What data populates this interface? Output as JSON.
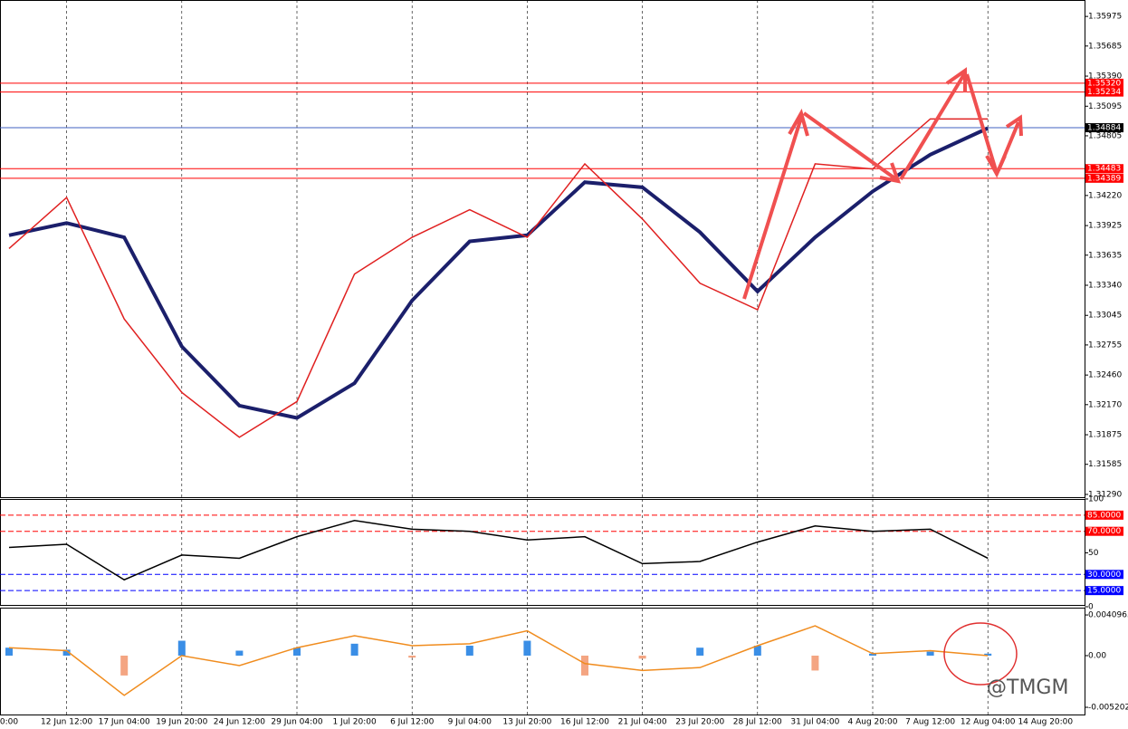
{
  "chart_data": [
    {
      "type": "line",
      "categories": [
        "0:00",
        "12 Jun 12:00",
        "17 Jun 04:00",
        "19 Jun 20:00",
        "24 Jun 12:00",
        "29 Jun 04:00",
        "1 Jul 20:00",
        "6 Jul 12:00",
        "9 Jul 04:00",
        "13 Jul 20:00",
        "16 Jul 12:00",
        "21 Jul 04:00",
        "23 Jul 20:00",
        "28 Jul 12:00",
        "31 Jul 04:00",
        "4 Aug 20:00",
        "7 Aug 12:00",
        "12 Aug 04:00",
        "14 Aug 20:00"
      ],
      "series": [
        {
          "color": "#1b1f6b",
          "values": [
            1.3383,
            1.3395,
            1.3381,
            1.3274,
            1.3216,
            1.3204,
            1.3238,
            1.3319,
            1.3377,
            1.3383,
            1.3435,
            1.343,
            1.3386,
            1.3328,
            1.3381,
            1.3426,
            1.3462,
            1.3488,
            null
          ]
        },
        {
          "color": "#e02020",
          "values": [
            1.337,
            1.342,
            1.3301,
            1.3229,
            1.3185,
            1.322,
            1.3345,
            1.3381,
            1.3408,
            1.3381,
            1.3453,
            1.3399,
            1.3336,
            1.331,
            1.3453,
            1.3448,
            1.3497,
            1.3497,
            null
          ]
        }
      ],
      "ylim": [
        1.31263,
        1.36136
      ],
      "yticks": [
        {
          "value": 1.35975,
          "label": "1.35975"
        },
        {
          "value": 1.35685,
          "label": "1.35685"
        },
        {
          "value": 1.3539,
          "label": "1.35390"
        },
        1.35095,
        {
          "value": 1.34805,
          "label": "1.34805"
        },
        {
          "value": 1.3422,
          "label": "1.34220"
        },
        1.33925,
        1.33635,
        {
          "value": 1.3334,
          "label": "1.33340"
        },
        1.33045,
        1.32755,
        {
          "value": 1.3246,
          "label": "1.32460"
        },
        {
          "value": 1.3217,
          "label": "1.32170"
        },
        1.31875,
        1.31585,
        {
          "value": 1.3129,
          "label": "1.31290"
        }
      ],
      "levels": [
        {
          "value": 1.3532,
          "label": "1.35320",
          "color": "#ff0000"
        },
        {
          "value": 1.35234,
          "label": "1.35234",
          "color": "#ff0000"
        },
        {
          "value": 1.34884,
          "label": "1.34884",
          "color": "#000000"
        },
        {
          "value": 1.34483,
          "label": "1.34483",
          "color": "#ff0000"
        },
        {
          "value": 1.34389,
          "label": "1.34389",
          "color": "#ff0000"
        }
      ],
      "grid": true
    },
    {
      "type": "line",
      "series": [
        {
          "color": "#000000",
          "values": [
            55,
            58,
            25,
            48,
            45,
            65,
            80,
            72,
            70,
            62,
            65,
            40,
            42,
            60,
            75,
            70,
            72,
            45,
            null
          ]
        }
      ],
      "ylim": [
        0,
        100
      ],
      "yticks": [
        100,
        50,
        0
      ],
      "levels": [
        {
          "value": 85,
          "label": "85.0000",
          "color": "#ff0000"
        },
        {
          "value": 70,
          "label": "70.0000",
          "color": "#ff0000"
        },
        {
          "value": 30,
          "label": "30.0000",
          "color": "#0000ff"
        },
        {
          "value": 15,
          "label": "15.0000",
          "color": "#0000ff"
        }
      ]
    },
    {
      "type": "combo",
      "values": [
        0.0008,
        0.0006,
        -0.002,
        0.0015,
        0.0005,
        0.0008,
        0.0012,
        -0.0002,
        0.001,
        0.0015,
        -0.002,
        -0.0003,
        0.0008,
        0.001,
        -0.0015,
        0.0002,
        0.0004,
        0.0002,
        null
      ],
      "colors": [
        "#3a8ee6",
        "#f4a582"
      ],
      "series": [
        {
          "color": "#f08c1e",
          "values": [
            0.0008,
            0.0005,
            -0.004,
            0,
            -0.001,
            0.0008,
            0.002,
            0.001,
            0.0012,
            0.0025,
            -0.0008,
            -0.0015,
            -0.0012,
            0.001,
            0.003,
            0.0002,
            0.0005,
            0,
            null
          ]
        }
      ],
      "ylim": [
        -0.00602,
        0.00474
      ],
      "yticks": [
        0.0040965,
        {
          "value": 0,
          "label": "0.00"
        },
        -0.005202
      ]
    }
  ],
  "watermark": "@TMGM"
}
